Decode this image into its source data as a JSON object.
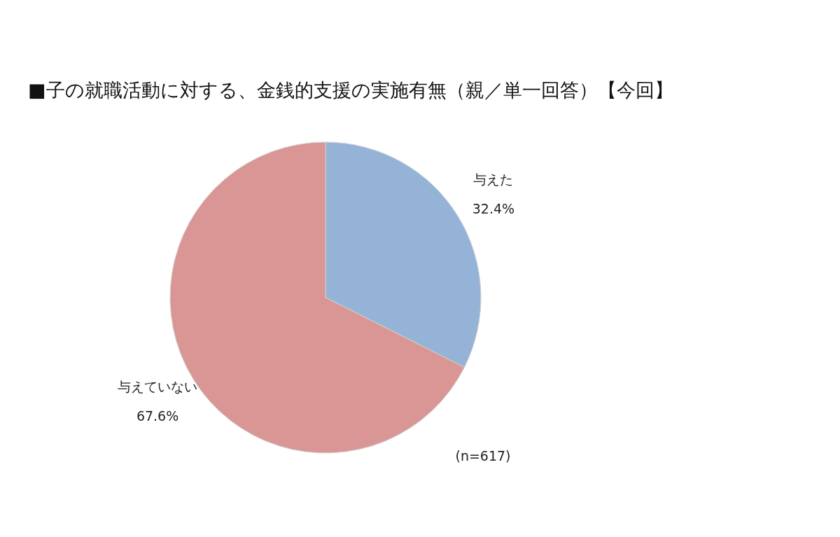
{
  "chart_data": {
    "type": "pie",
    "title": "■子の就職活動に対する、金銭的支援の実施有無（親／単一回答）【今回】",
    "categories": [
      "与えた",
      "与えていない"
    ],
    "values": [
      32.4,
      67.6
    ],
    "colors": [
      "#95b3d7",
      "#d99694"
    ],
    "value_labels": [
      "32.4%",
      "67.6%"
    ],
    "annotations": [
      "(n=617)"
    ]
  }
}
